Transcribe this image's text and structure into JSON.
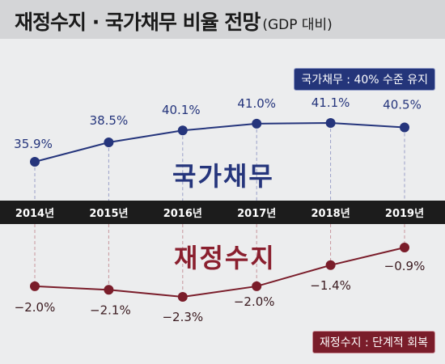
{
  "title": {
    "main": "재정수지 · 국가채무 비율 전망",
    "sub": "(GDP 대비)"
  },
  "legend": {
    "debt_box": "국가채무 : 40% 수준 유지",
    "balance_box": "재정수지 : 단계적 회복",
    "debt_name": "국가채무",
    "balance_name": "재정수지"
  },
  "chart_data": {
    "type": "line",
    "categories": [
      "2014년",
      "2015년",
      "2016년",
      "2017년",
      "2018년",
      "2019년"
    ],
    "series": [
      {
        "name": "국가채무",
        "values": [
          35.9,
          38.5,
          40.1,
          41.0,
          41.1,
          40.5
        ],
        "labels": [
          "35.9%",
          "38.5%",
          "40.1%",
          "41.0%",
          "41.1%",
          "40.5%"
        ],
        "color": "#25357c"
      },
      {
        "name": "재정수지",
        "values": [
          -2.0,
          -2.1,
          -2.3,
          -2.0,
          -1.4,
          -0.9
        ],
        "labels": [
          "−2.0%",
          "−2.1%",
          "−2.3%",
          "−2.0%",
          "−1.4%",
          "−0.9%"
        ],
        "color": "#7a1d2a"
      }
    ],
    "unit": "% (GDP 대비)",
    "grid": false
  }
}
